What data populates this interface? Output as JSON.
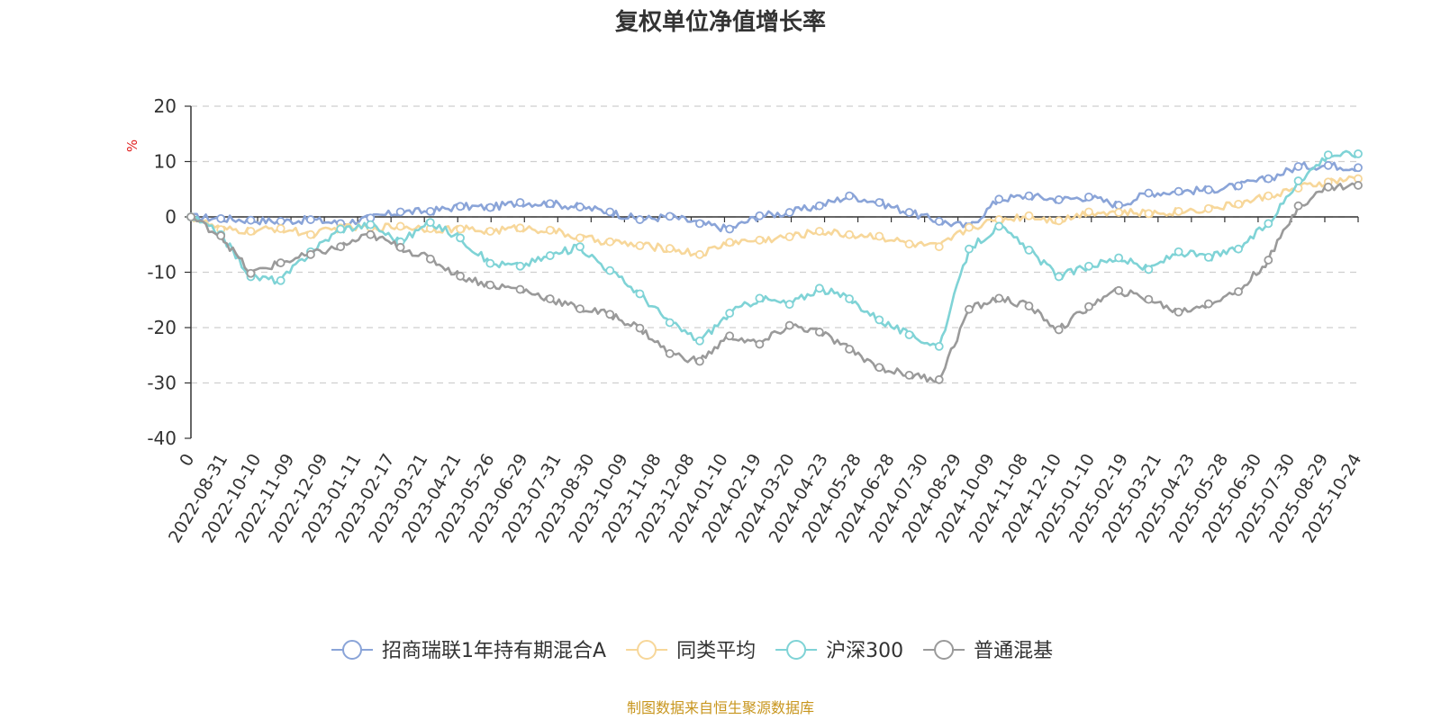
{
  "chart_data": {
    "type": "line",
    "title": "复权单位净值增长率",
    "ylabel": "%",
    "ylim": [
      -40,
      20
    ],
    "yticks": [
      20,
      10,
      0,
      -10,
      -20,
      -30,
      -40
    ],
    "grid": true,
    "legend_position": "bottom-center",
    "x_ticks": [
      "0",
      "2022-08-31",
      "2022-10-10",
      "2022-11-09",
      "2022-12-09",
      "2023-01-11",
      "2023-02-17",
      "2023-03-21",
      "2023-04-21",
      "2023-05-26",
      "2023-06-29",
      "2023-07-31",
      "2023-08-30",
      "2023-10-09",
      "2023-11-08",
      "2023-12-08",
      "2024-01-10",
      "2024-02-19",
      "2024-03-20",
      "2024-04-23",
      "2024-05-28",
      "2024-06-28",
      "2024-07-30",
      "2024-08-29",
      "2024-10-09",
      "2024-11-08",
      "2024-12-10",
      "2025-01-10",
      "2025-02-19",
      "2025-03-21",
      "2025-04-23",
      "2025-05-28",
      "2025-06-30",
      "2025-07-30",
      "2025-08-29",
      "2025-10-24"
    ],
    "series": [
      {
        "name": "招商瑞联1年持有期混合A",
        "color": "#8aa4d8",
        "values": [
          0,
          -0.3,
          -0.6,
          -0.8,
          -0.5,
          -1.2,
          -0.2,
          0.9,
          1.0,
          1.9,
          1.7,
          2.6,
          2.4,
          1.8,
          0.9,
          -0.5,
          0.1,
          -1.2,
          -2.2,
          0.2,
          0.8,
          2.0,
          3.8,
          2.6,
          0.8,
          -0.8,
          -1.8,
          3.2,
          3.8,
          3.1,
          3.6,
          2.1,
          4.3,
          4.6,
          4.9,
          5.6,
          6.9,
          9.1,
          9.3,
          8.9
        ]
      },
      {
        "name": "同类平均",
        "color": "#f7d79a",
        "values": [
          0,
          -2.3,
          -2.6,
          -2.1,
          -3.2,
          -2.0,
          -1.9,
          -1.7,
          -2.1,
          -2.2,
          -2.6,
          -2.0,
          -2.4,
          -3.8,
          -4.5,
          -5.2,
          -5.7,
          -6.8,
          -4.6,
          -4.2,
          -3.6,
          -2.6,
          -3.2,
          -3.5,
          -4.9,
          -5.4,
          -1.9,
          -0.5,
          0.2,
          -0.7,
          0.9,
          0.8,
          0.6,
          1.0,
          1.5,
          2.3,
          3.8,
          5.2,
          6.3,
          6.9
        ]
      },
      {
        "name": "沪深300",
        "color": "#7fd3d6",
        "values": [
          0,
          -3.2,
          -10.8,
          -11.5,
          -6.3,
          -2.2,
          -1.4,
          -4.5,
          -1.0,
          -3.8,
          -8.4,
          -8.9,
          -7.0,
          -5.4,
          -9.7,
          -13.9,
          -19.1,
          -22.4,
          -17.4,
          -14.7,
          -15.8,
          -12.9,
          -14.8,
          -18.6,
          -21.3,
          -23.4,
          -5.8,
          -1.7,
          -6.0,
          -10.8,
          -8.9,
          -7.4,
          -9.5,
          -6.3,
          -7.3,
          -5.8,
          -1.2,
          6.5,
          11.2,
          11.4
        ]
      },
      {
        "name": "普通混基",
        "color": "#9a9a9a",
        "values": [
          0,
          -3.4,
          -10.2,
          -8.3,
          -6.8,
          -5.4,
          -3.2,
          -5.5,
          -7.6,
          -10.7,
          -12.3,
          -13.1,
          -14.8,
          -16.6,
          -17.6,
          -20.1,
          -24.7,
          -26.1,
          -21.5,
          -23.0,
          -19.6,
          -20.8,
          -23.9,
          -27.2,
          -28.6,
          -29.4,
          -16.7,
          -14.7,
          -16.1,
          -20.4,
          -16.2,
          -13.3,
          -14.9,
          -17.2,
          -15.7,
          -13.5,
          -7.8,
          2.0,
          5.4,
          5.7
        ]
      }
    ],
    "footer": "制图数据来自恒生聚源数据库"
  }
}
